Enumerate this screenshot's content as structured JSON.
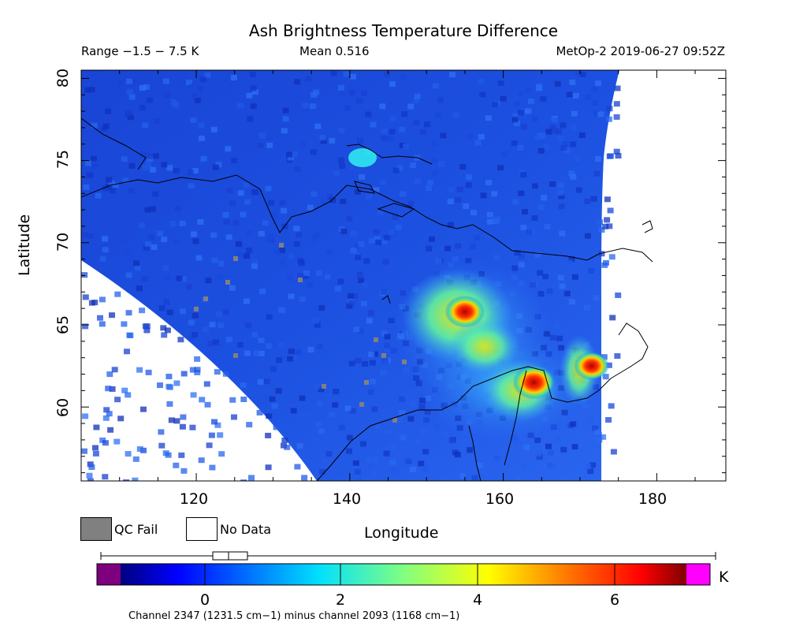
{
  "title": "Ash Brightness Temperature Difference",
  "range_label": "Range −1.5 − 7.5 K",
  "mean_label": "Mean 0.516",
  "satellite_time": "MetOp-2 2019-06-27 09:52Z",
  "axes": {
    "xlabel": "Longitude",
    "ylabel": "Latitude",
    "xticks": [
      "120",
      "140",
      "160",
      "180"
    ],
    "yticks": [
      "60",
      "65",
      "70",
      "75",
      "80"
    ]
  },
  "legend": {
    "qc_fail": "QC Fail",
    "no_data": "No Data",
    "qc_color": "#808080",
    "nodata_color": "#ffffff"
  },
  "colorbar": {
    "ticks": [
      "0",
      "2",
      "4",
      "6"
    ],
    "unit": "K",
    "under_color": "#7f007f",
    "over_color": "#ff00ff"
  },
  "caption": "Channel 2347 (1231.5 cm−1) minus channel 2093 (1168 cm−1)",
  "chart_data": {
    "type": "heatmap",
    "title": "Ash Brightness Temperature Difference",
    "xlabel": "Longitude",
    "ylabel": "Latitude",
    "xlim": [
      105,
      189
    ],
    "ylim": [
      55.5,
      80.5
    ],
    "value_range": [
      -1.5,
      7.5
    ],
    "mean": 0.516,
    "units": "K",
    "hotspots": [
      {
        "lon": 155,
        "lat": 65.8,
        "value": 6.5
      },
      {
        "lon": 164,
        "lat": 61.5,
        "value": 7.0
      },
      {
        "lon": 171.5,
        "lat": 62.5,
        "value": 5.5
      }
    ]
  }
}
